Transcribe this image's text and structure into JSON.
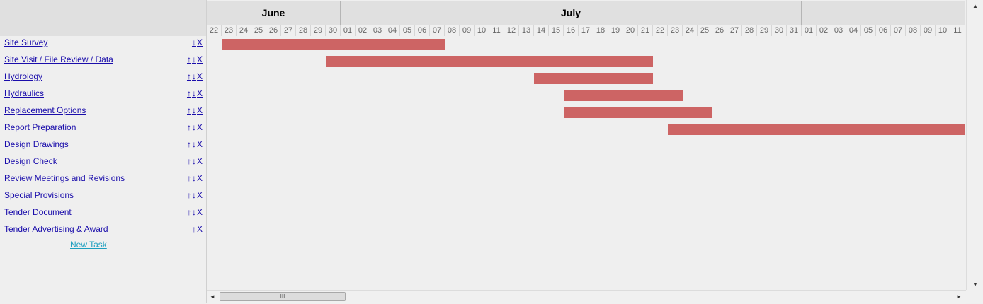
{
  "months": [
    {
      "label": "June",
      "days": [
        "22",
        "23",
        "24",
        "25",
        "26",
        "27",
        "28",
        "29",
        "30"
      ]
    },
    {
      "label": "July",
      "days": [
        "01",
        "02",
        "03",
        "04",
        "05",
        "06",
        "07",
        "08",
        "09",
        "10",
        "11",
        "12",
        "13",
        "14",
        "15",
        "16",
        "17",
        "18",
        "19",
        "20",
        "21",
        "22",
        "23",
        "24",
        "25",
        "26",
        "27",
        "28",
        "29",
        "30",
        "31"
      ]
    },
    {
      "label": "",
      "days": [
        "01",
        "02",
        "03",
        "04",
        "05",
        "06",
        "07",
        "08",
        "09",
        "10",
        "11"
      ]
    }
  ],
  "tasks": [
    {
      "name": "Site Survey",
      "controls": [
        "↓",
        "X"
      ],
      "bar": {
        "start_day": 1,
        "end_day": 16
      }
    },
    {
      "name": "Site Visit / File Review / Data",
      "controls": [
        "↑",
        "↓",
        "X"
      ],
      "bar": {
        "start_day": 8,
        "end_day": 30
      }
    },
    {
      "name": "Hydrology",
      "controls": [
        "↑",
        "↓",
        "X"
      ],
      "bar": {
        "start_day": 22,
        "end_day": 30
      }
    },
    {
      "name": "Hydraulics",
      "controls": [
        "↑",
        "↓",
        "X"
      ],
      "bar": {
        "start_day": 24,
        "end_day": 32
      }
    },
    {
      "name": "Replacement Options",
      "controls": [
        "↑",
        "↓",
        "X"
      ],
      "bar": {
        "start_day": 24,
        "end_day": 34
      }
    },
    {
      "name": "Report Preparation",
      "controls": [
        "↑",
        "↓",
        "X"
      ],
      "bar": {
        "start_day": 31,
        "end_day": 51
      }
    },
    {
      "name": "Design Drawings",
      "controls": [
        "↑",
        "↓",
        "X"
      ]
    },
    {
      "name": "Design Check",
      "controls": [
        "↑",
        "↓",
        "X"
      ]
    },
    {
      "name": "Review Meetings and Revisions",
      "controls": [
        "↑",
        "↓",
        "X"
      ]
    },
    {
      "name": "Special Provisions",
      "controls": [
        "↑",
        "↓",
        "X"
      ]
    },
    {
      "name": "Tender Document",
      "controls": [
        "↑",
        "↓",
        "X"
      ]
    },
    {
      "name": "Tender Advertising & Award",
      "controls": [
        "↑",
        "X"
      ]
    }
  ],
  "new_task_label": "New Task",
  "scrollbar": {
    "thumb_grip": "III",
    "left_arrow": "◄",
    "right_arrow": "►",
    "up_arrow": "▲",
    "down_arrow": "▼"
  },
  "colors": {
    "bar": "#cd6464",
    "link": "#1a0dab",
    "new_task": "#1d9fbf"
  }
}
